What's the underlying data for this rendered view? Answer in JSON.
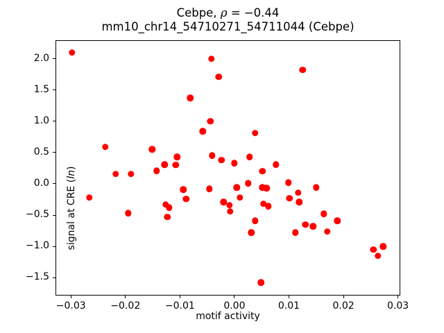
{
  "figure": {
    "title_line1": {
      "prefix": "Cebpe, ",
      "rho": "ρ",
      "suffix": " = −0.44"
    },
    "title_line2": "mm10_chr14_54710271_54711044 (Cebpe)",
    "xlabel": "motif activity",
    "ylabel": {
      "prefix": "signal at CRE (",
      "italic": "ln",
      "suffix": ")"
    },
    "background_color": "#ffffff",
    "spine_color": "#000000"
  },
  "chart_data": {
    "type": "scatter",
    "title": "Cebpe, ρ = −0.44",
    "subtitle": "mm10_chr14_54710271_54711044 (Cebpe)",
    "xlabel": "motif activity",
    "ylabel": "signal at CRE (ln)",
    "marker_color": "#ff0000",
    "marker_diameter_px": 9.5,
    "grid": false,
    "legend": null,
    "xlim": [
      -0.0327,
      0.0303
    ],
    "ylim": [
      -1.775,
      2.285
    ],
    "x_ticks": [
      {
        "v": -0.03,
        "label": "−0.03"
      },
      {
        "v": -0.02,
        "label": "−0.02"
      },
      {
        "v": -0.01,
        "label": "−0.01"
      },
      {
        "v": 0.0,
        "label": "0.00"
      },
      {
        "v": 0.01,
        "label": "0.01"
      },
      {
        "v": 0.02,
        "label": "0.02"
      },
      {
        "v": 0.03,
        "label": "0.03"
      }
    ],
    "y_ticks": [
      {
        "v": 2.0,
        "label": "2.0"
      },
      {
        "v": 1.5,
        "label": "1.5"
      },
      {
        "v": 1.0,
        "label": "1.0"
      },
      {
        "v": 0.5,
        "label": "0.5"
      },
      {
        "v": 0.0,
        "label": "0.0"
      },
      {
        "v": -0.5,
        "label": "−0.5"
      },
      {
        "v": -1.0,
        "label": "−1.0"
      },
      {
        "v": -1.5,
        "label": "−1.5"
      }
    ],
    "points": [
      [
        -0.0298,
        2.1
      ],
      [
        -0.0042,
        2.0
      ],
      [
        -0.0029,
        1.71
      ],
      [
        0.0125,
        1.82
      ],
      [
        -0.0081,
        1.37
      ],
      [
        -0.0044,
        1.0
      ],
      [
        -0.0058,
        0.84
      ],
      [
        0.0038,
        0.81
      ],
      [
        -0.0237,
        0.59
      ],
      [
        -0.0151,
        0.55
      ],
      [
        -0.0105,
        0.43
      ],
      [
        -0.0041,
        0.45
      ],
      [
        -0.0024,
        0.38
      ],
      [
        0.0028,
        0.43
      ],
      [
        0.0,
        0.33
      ],
      [
        0.0076,
        0.31
      ],
      [
        -0.0128,
        0.31
      ],
      [
        -0.0108,
        0.3
      ],
      [
        -0.0218,
        0.16
      ],
      [
        -0.019,
        0.16
      ],
      [
        -0.0143,
        0.21
      ],
      [
        0.0051,
        0.2
      ],
      [
        -0.0266,
        -0.22
      ],
      [
        -0.0195,
        -0.47
      ],
      [
        -0.0094,
        -0.09
      ],
      [
        -0.0089,
        -0.24
      ],
      [
        -0.0126,
        -0.33
      ],
      [
        -0.012,
        -0.38
      ],
      [
        -0.0123,
        -0.53
      ],
      [
        -0.0046,
        -0.08
      ],
      [
        -0.002,
        -0.29
      ],
      [
        -0.0009,
        -0.34
      ],
      [
        -0.0008,
        -0.44
      ],
      [
        0.0004,
        -0.06
      ],
      [
        0.001,
        -0.22
      ],
      [
        0.0025,
        0.01
      ],
      [
        0.0051,
        -0.06
      ],
      [
        0.0059,
        -0.07
      ],
      [
        0.0053,
        -0.32
      ],
      [
        0.0062,
        -0.36
      ],
      [
        0.0038,
        -0.59
      ],
      [
        0.0031,
        -0.78
      ],
      [
        0.0099,
        0.02
      ],
      [
        0.0117,
        -0.14
      ],
      [
        0.0101,
        -0.23
      ],
      [
        0.0119,
        -0.29
      ],
      [
        0.015,
        -0.06
      ],
      [
        0.0164,
        -0.48
      ],
      [
        0.0189,
        -0.59
      ],
      [
        0.013,
        -0.65
      ],
      [
        0.0144,
        -0.68
      ],
      [
        0.0112,
        -0.78
      ],
      [
        0.017,
        -0.76
      ],
      [
        0.0255,
        -1.05
      ],
      [
        0.0273,
        -1.0
      ],
      [
        0.0263,
        -1.15
      ],
      [
        0.0049,
        -1.58
      ]
    ]
  }
}
